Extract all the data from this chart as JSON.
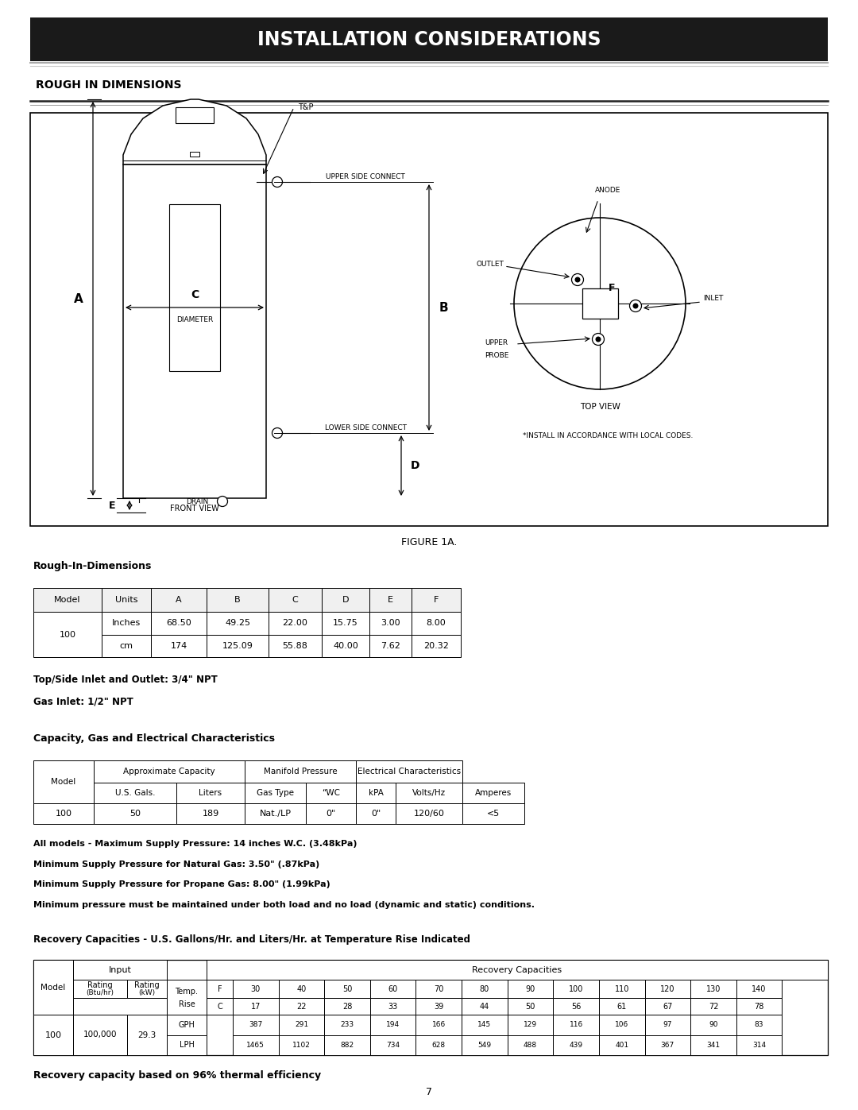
{
  "title": "INSTALLATION CONSIDERATIONS",
  "section_title": "ROUGH IN DIMENSIONS",
  "figure_caption": "FIGURE 1A.",
  "rough_in_label": "Rough-In-Dimensions",
  "rough_in_headers": [
    "Model",
    "Units",
    "A",
    "B",
    "C",
    "D",
    "E",
    "F"
  ],
  "rough_in_rows": [
    [
      "100",
      "Inches",
      "68.50",
      "49.25",
      "22.00",
      "15.75",
      "3.00",
      "8.00"
    ],
    [
      "",
      "cm",
      "174",
      "125.09",
      "55.88",
      "40.00",
      "7.62",
      "20.32"
    ]
  ],
  "npt_notes": [
    "Top/Side Inlet and Outlet: 3/4\" NPT",
    "Gas Inlet: 1/2\" NPT"
  ],
  "capacity_label": "Capacity, Gas and Electrical Characteristics",
  "cap_rows": [
    [
      "100",
      "50",
      "189",
      "Nat./LP",
      "0\"",
      "0\"",
      "120/60",
      "<5"
    ]
  ],
  "pressure_notes": [
    "All models - Maximum Supply Pressure: 14 inches W.C. (3.48kPa)",
    "Minimum Supply Pressure for Natural Gas: 3.50\" (.87kPa)",
    "Minimum Supply Pressure for Propane Gas: 8.00\" (1.99kPa)",
    "Minimum pressure must be maintained under both load and no load (dynamic and static) conditions."
  ],
  "recovery_label": "Recovery Capacities - U.S. Gallons/Hr. and Liters/Hr. at Temperature Rise Indicated",
  "recovery_note": "Recovery capacity based on 96% thermal efficiency",
  "page_number": "7",
  "gph_data": [
    "387",
    "291",
    "233",
    "194",
    "166",
    "145",
    "129",
    "116",
    "106",
    "97",
    "90",
    "83"
  ],
  "lph_data": [
    "1465",
    "1102",
    "882",
    "734",
    "628",
    "549",
    "488",
    "439",
    "401",
    "367",
    "341",
    "314"
  ],
  "temp_f": [
    "F",
    "30",
    "40",
    "50",
    "60",
    "70",
    "80",
    "90",
    "100",
    "110",
    "120",
    "130",
    "140"
  ],
  "temp_c": [
    "C",
    "17",
    "22",
    "28",
    "33",
    "39",
    "44",
    "50",
    "56",
    "61",
    "67",
    "72",
    "78"
  ],
  "background": "#ffffff",
  "header_bg": "#1a1a1a",
  "header_text": "#ffffff",
  "text_color": "#000000"
}
